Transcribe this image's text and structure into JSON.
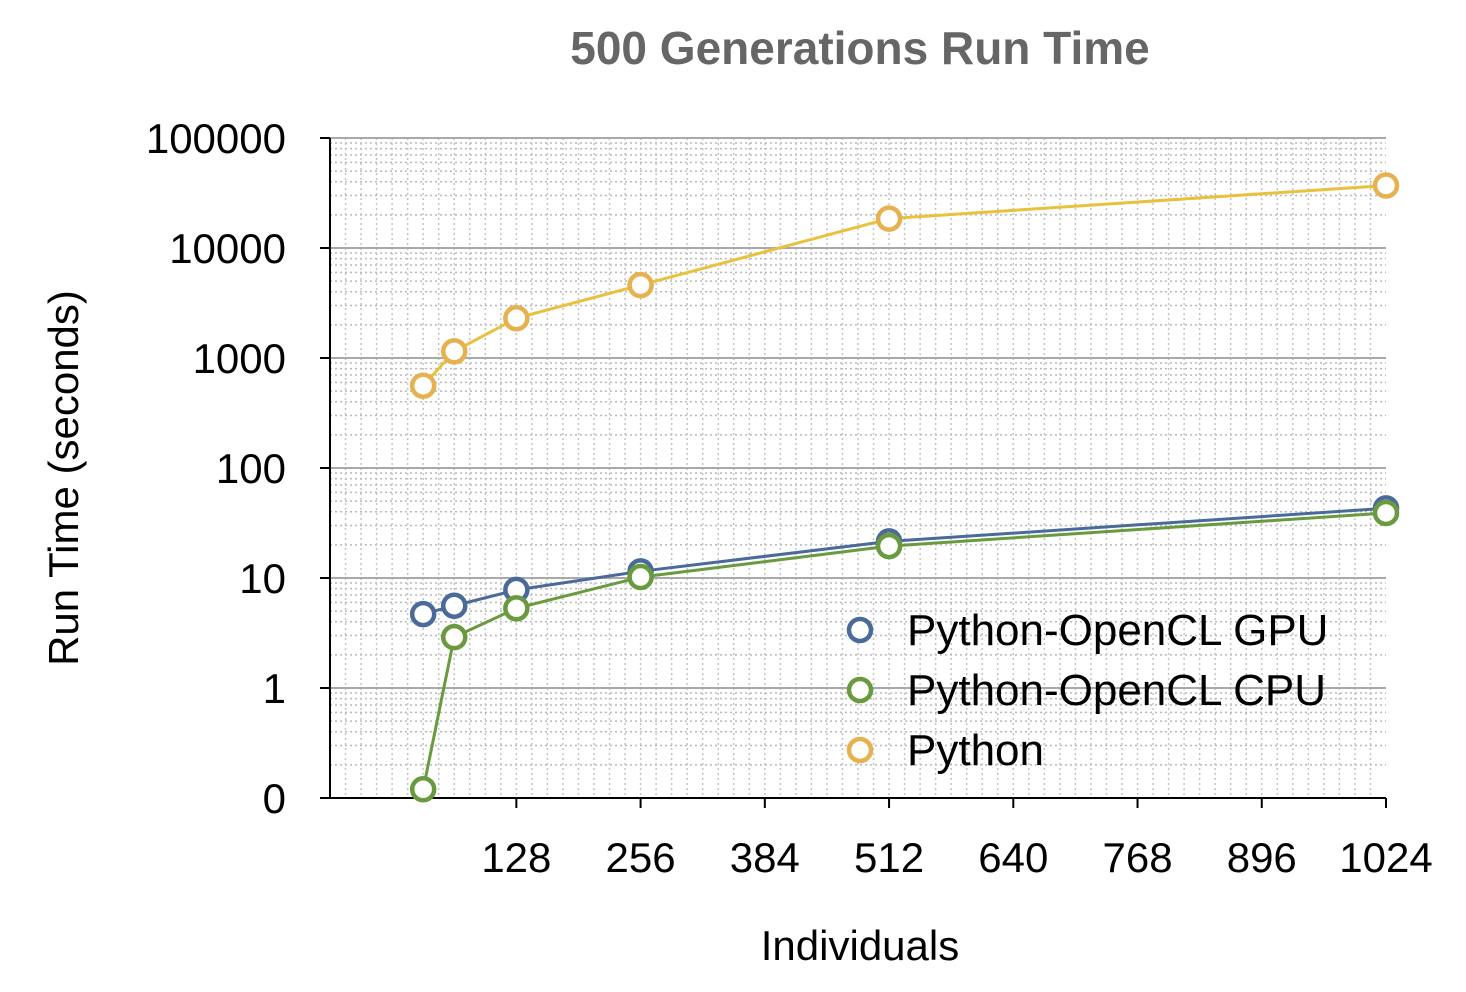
{
  "chart_data": {
    "type": "line",
    "title": "500 Generations Run Time",
    "xlabel": "Individuals",
    "ylabel": "Run Time (seconds)",
    "x_scale": "linear",
    "y_scale": "log",
    "xlim": [
      -64,
      1024
    ],
    "ylim": [
      0.1,
      100000
    ],
    "x_ticks": [
      128,
      256,
      384,
      512,
      640,
      768,
      896,
      1024
    ],
    "x_tick_labels": [
      "128",
      "256",
      "384",
      "512",
      "640",
      "768",
      "896",
      "1024"
    ],
    "y_ticks": [
      0.1,
      1,
      10,
      100,
      1000,
      10000,
      100000
    ],
    "y_tick_labels": [
      "0",
      "1",
      "10",
      "100",
      "1000",
      "10000",
      "100000"
    ],
    "grid": true,
    "legend_position": "bottom-right",
    "x": [
      32,
      64,
      128,
      256,
      512,
      1024
    ],
    "series": [
      {
        "name": "Python-OpenCL GPU",
        "color": "#4a6a99",
        "values": [
          4.7,
          5.6,
          7.8,
          11.5,
          21.5,
          43
        ]
      },
      {
        "name": "Python-OpenCL CPU",
        "color": "#6a9a3e",
        "values": [
          0.12,
          2.9,
          5.3,
          10.2,
          19.5,
          39
        ]
      },
      {
        "name": "Python",
        "color": "#e6b14e",
        "line_color": "#e8c23c",
        "values": [
          560,
          1150,
          2300,
          4600,
          18500,
          37000
        ]
      }
    ]
  }
}
